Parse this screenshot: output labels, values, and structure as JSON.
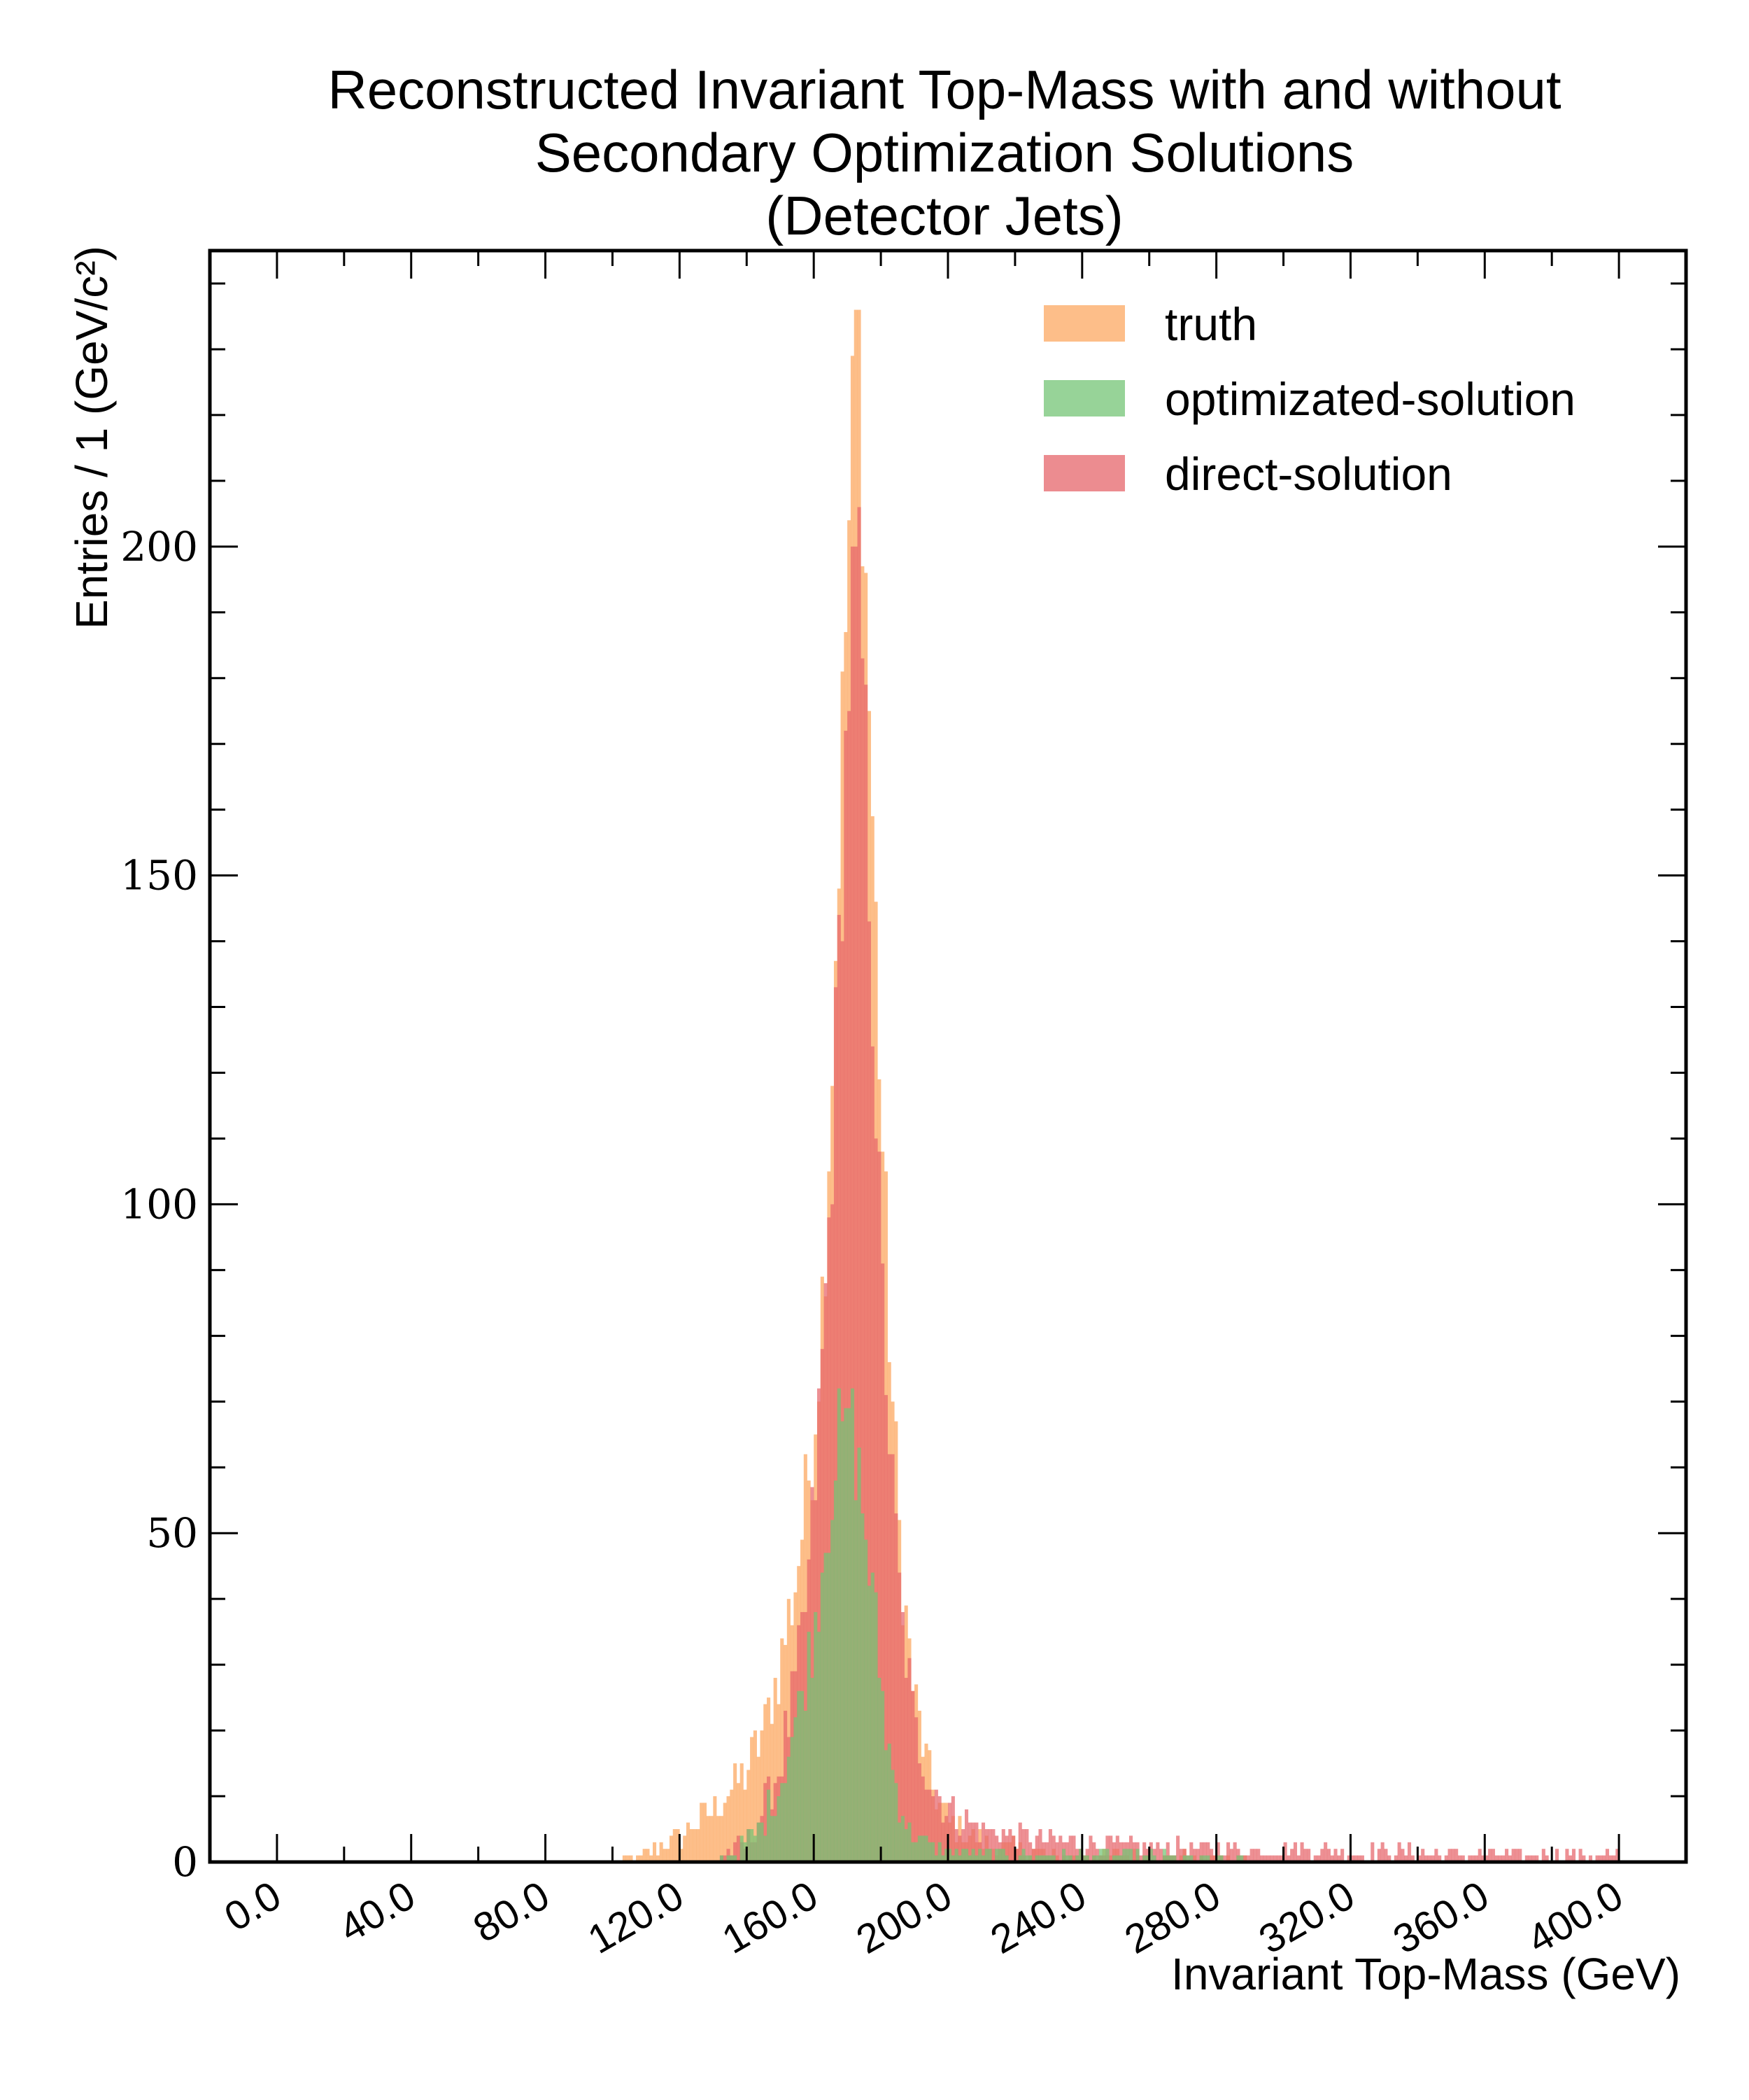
{
  "colors": {
    "truth": "#fdae6b",
    "optimized": "#74c476",
    "direct": "#e6656b"
  },
  "chart_data": {
    "type": "histogram",
    "title_lines": [
      "Reconstructed Invariant Top-Mass with and without",
      "Secondary Optimization Solutions",
      "(Detector Jets)"
    ],
    "xlabel": "Invariant Top-Mass (GeV)",
    "ylabel": "Entries / 1 (GeV/c²)",
    "xlim": [
      -20,
      420
    ],
    "ylim": [
      0,
      245
    ],
    "bin_width": 1,
    "x_ticks": [
      "0.0",
      "40.0",
      "80.0",
      "120.0",
      "160.0",
      "200.0",
      "240.0",
      "280.0",
      "320.0",
      "360.0",
      "400.0"
    ],
    "x_tick_values": [
      0,
      40,
      80,
      120,
      160,
      200,
      240,
      280,
      320,
      360,
      400
    ],
    "y_ticks": [
      "0",
      "50",
      "100",
      "150",
      "200"
    ],
    "y_tick_values": [
      0,
      50,
      100,
      150,
      200
    ],
    "legend_position": "top-right",
    "series": [
      {
        "name": "truth",
        "peak_x": 172.5,
        "peak_y": 236,
        "profile": [
          [
            100,
            0
          ],
          [
            110,
            1
          ],
          [
            120,
            4
          ],
          [
            130,
            8
          ],
          [
            140,
            14
          ],
          [
            145,
            20
          ],
          [
            150,
            30
          ],
          [
            155,
            44
          ],
          [
            160,
            65
          ],
          [
            163,
            90
          ],
          [
            166,
            130
          ],
          [
            168,
            165
          ],
          [
            170,
            195
          ],
          [
            172,
            225
          ],
          [
            173,
            236
          ],
          [
            174,
            222
          ],
          [
            176,
            185
          ],
          [
            178,
            150
          ],
          [
            180,
            115
          ],
          [
            183,
            75
          ],
          [
            186,
            45
          ],
          [
            190,
            25
          ],
          [
            195,
            12
          ],
          [
            200,
            6
          ],
          [
            210,
            3
          ],
          [
            230,
            1
          ],
          [
            260,
            1
          ],
          [
            300,
            0
          ]
        ]
      },
      {
        "name": "optimizated-solution",
        "peak_x": 170,
        "peak_y": 69,
        "profile": [
          [
            130,
            0
          ],
          [
            138,
            2
          ],
          [
            145,
            6
          ],
          [
            150,
            12
          ],
          [
            155,
            22
          ],
          [
            160,
            35
          ],
          [
            163,
            48
          ],
          [
            166,
            60
          ],
          [
            169,
            67
          ],
          [
            170,
            69
          ],
          [
            172,
            64
          ],
          [
            175,
            52
          ],
          [
            178,
            38
          ],
          [
            181,
            22
          ],
          [
            184,
            12
          ],
          [
            188,
            5
          ],
          [
            195,
            2
          ],
          [
            210,
            1
          ],
          [
            250,
            1
          ],
          [
            300,
            0
          ]
        ]
      },
      {
        "name": "direct-solution",
        "peak_x": 172,
        "peak_y": 200,
        "profile": [
          [
            130,
            0
          ],
          [
            140,
            3
          ],
          [
            145,
            8
          ],
          [
            150,
            15
          ],
          [
            155,
            28
          ],
          [
            158,
            40
          ],
          [
            161,
            62
          ],
          [
            164,
            90
          ],
          [
            167,
            130
          ],
          [
            170,
            175
          ],
          [
            172,
            200
          ],
          [
            174,
            190
          ],
          [
            176,
            160
          ],
          [
            178,
            125
          ],
          [
            180,
            90
          ],
          [
            183,
            60
          ],
          [
            186,
            38
          ],
          [
            190,
            20
          ],
          [
            195,
            12
          ],
          [
            200,
            8
          ],
          [
            210,
            5
          ],
          [
            220,
            4
          ],
          [
            240,
            3
          ],
          [
            260,
            2
          ],
          [
            300,
            2
          ],
          [
            360,
            1
          ],
          [
            400,
            1
          ]
        ]
      }
    ]
  }
}
